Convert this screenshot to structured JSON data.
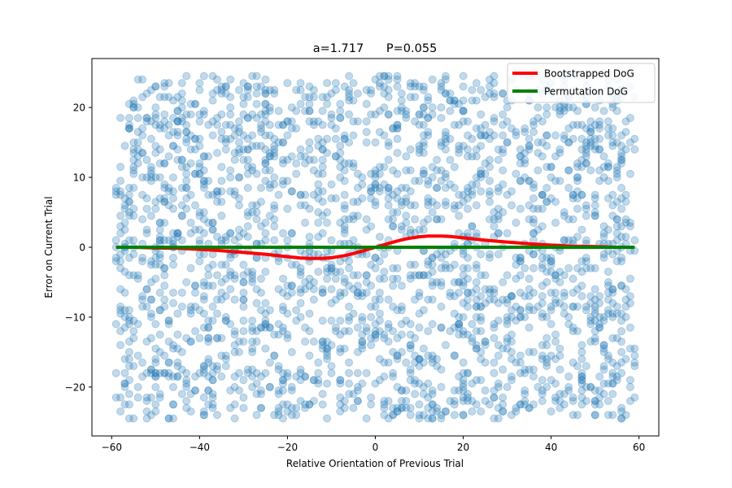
{
  "chart_data": {
    "type": "scatter",
    "title": "a=1.717      P=0.055",
    "xlabel": "Relative Orientation of Previous Trial",
    "ylabel": "Error on Current Trial",
    "xlim": [
      -64.5,
      64.5
    ],
    "ylim": [
      -27,
      27
    ],
    "xticks": [
      -60,
      -40,
      -20,
      0,
      20,
      40,
      60
    ],
    "yticks": [
      -20,
      -10,
      0,
      10,
      20
    ],
    "xtick_labels": [
      "−60",
      "−40",
      "−20",
      "0",
      "20",
      "40",
      "60"
    ],
    "ytick_labels": [
      "−20",
      "−10",
      "0",
      "10",
      "20"
    ],
    "grid": false,
    "legend_position": "top-right",
    "scatter": {
      "color": "#1f77b4",
      "alpha": 0.28,
      "x_range": [
        -59,
        59
      ],
      "y_range": [
        -24.5,
        24.5
      ],
      "count": 2400
    },
    "series": [
      {
        "name": "Bootstrapped DoG",
        "color": "#ff0000",
        "x": [
          -59,
          -55,
          -50,
          -45,
          -40,
          -35,
          -30,
          -25,
          -20,
          -17,
          -15,
          -12,
          -10,
          -7,
          -5,
          -3,
          0,
          3,
          5,
          7,
          10,
          12,
          15,
          17,
          20,
          25,
          30,
          35,
          40,
          45,
          50,
          55,
          59
        ],
        "y": [
          0.0,
          0.0,
          -0.1,
          -0.15,
          -0.3,
          -0.5,
          -0.75,
          -1.0,
          -1.35,
          -1.55,
          -1.6,
          -1.6,
          -1.5,
          -1.2,
          -0.9,
          -0.55,
          0.0,
          0.55,
          0.9,
          1.2,
          1.5,
          1.6,
          1.6,
          1.55,
          1.35,
          1.0,
          0.75,
          0.5,
          0.3,
          0.15,
          0.1,
          0.0,
          0.0
        ]
      },
      {
        "name": "Permutation DoG",
        "color": "#008000",
        "x": [
          -59,
          59
        ],
        "y": [
          0,
          0
        ]
      }
    ]
  }
}
